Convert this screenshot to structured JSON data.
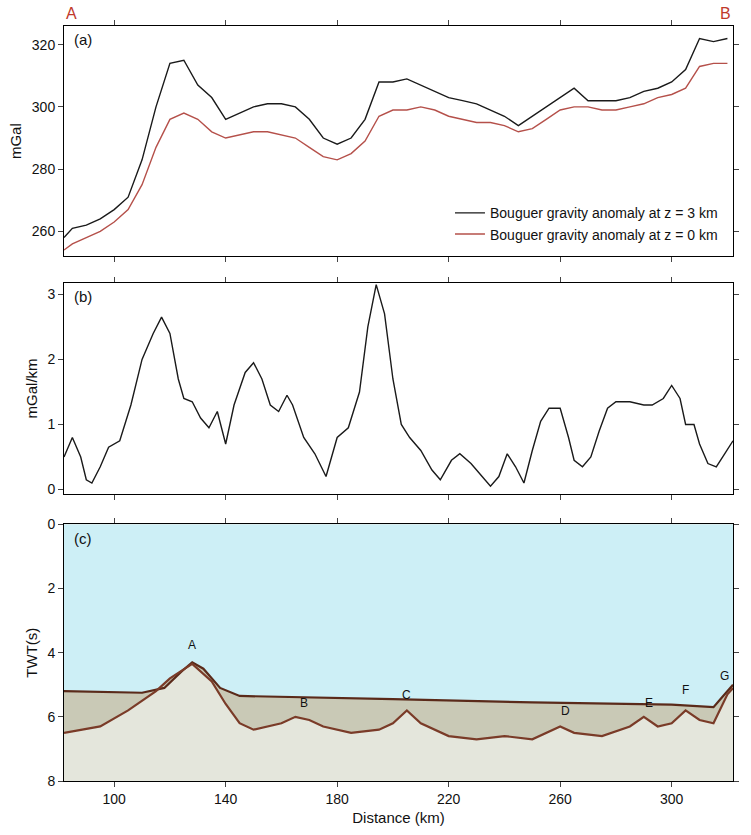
{
  "chart_data": [
    {
      "type": "line",
      "title": "(a)",
      "y_label": "mGal",
      "xlim": [
        82,
        322
      ],
      "xticks": [
        100,
        140,
        180,
        220,
        260,
        300
      ],
      "ylim": [
        252,
        326
      ],
      "yticks": [
        260,
        280,
        300,
        320
      ],
      "tick_labels": "y",
      "grid": false,
      "legend": "lower right",
      "annotations": [
        {
          "text": "A",
          "color": "#c0392b"
        },
        {
          "text": "B",
          "color": "#c0392b"
        }
      ],
      "series": [
        {
          "name": "Bouguer gravity anomaly at z = 0 km",
          "color": "#b5504a",
          "x": [
            82,
            85,
            90,
            95,
            100,
            105,
            110,
            115,
            120,
            125,
            130,
            135,
            140,
            145,
            150,
            155,
            160,
            165,
            170,
            175,
            180,
            185,
            190,
            195,
            200,
            205,
            210,
            215,
            220,
            225,
            230,
            235,
            240,
            245,
            250,
            255,
            260,
            265,
            270,
            275,
            280,
            285,
            290,
            295,
            300,
            305,
            310,
            315,
            320
          ],
          "values": [
            254,
            256,
            258,
            260,
            263,
            267,
            275,
            287,
            296,
            298,
            296,
            292,
            290,
            291,
            292,
            292,
            291,
            290,
            287,
            284,
            283,
            285,
            289,
            297,
            299,
            299,
            300,
            299,
            297,
            296,
            295,
            295,
            294,
            292,
            293,
            296,
            299,
            300,
            300,
            299,
            299,
            300,
            301,
            303,
            304,
            306,
            313,
            314,
            314
          ]
        },
        {
          "name": "Bouguer gravity anomaly at z = 3 km",
          "color": "#1a1a1a",
          "x": [
            82,
            85,
            90,
            95,
            100,
            105,
            110,
            115,
            120,
            125,
            130,
            135,
            140,
            145,
            150,
            155,
            160,
            165,
            170,
            175,
            180,
            185,
            190,
            195,
            200,
            205,
            210,
            215,
            220,
            225,
            230,
            235,
            240,
            245,
            250,
            255,
            260,
            265,
            270,
            275,
            280,
            285,
            290,
            295,
            300,
            305,
            310,
            315,
            320
          ],
          "values": [
            258,
            261,
            262,
            264,
            267,
            271,
            283,
            300,
            314,
            315,
            307,
            303,
            296,
            298,
            300,
            301,
            301,
            300,
            296,
            290,
            288,
            290,
            296,
            308,
            308,
            309,
            307,
            305,
            303,
            302,
            301,
            299,
            297,
            294,
            297,
            300,
            303,
            306,
            302,
            302,
            302,
            303,
            305,
            306,
            308,
            312,
            322,
            321,
            322
          ]
        }
      ]
    },
    {
      "type": "line",
      "title": "(b)",
      "y_label": "mGal/km",
      "xlim": [
        82,
        322
      ],
      "xticks": [
        100,
        140,
        180,
        220,
        260,
        300
      ],
      "ylim": [
        -0.07,
        3.18
      ],
      "yticks": [
        0,
        1,
        2,
        3
      ],
      "tick_labels": "y",
      "grid": false,
      "series": [
        {
          "color": "#1a1a1a",
          "x": [
            82,
            85,
            88,
            90,
            92,
            95,
            98,
            102,
            106,
            110,
            114,
            117,
            120,
            123,
            125,
            128,
            131,
            134,
            137,
            140,
            143,
            147,
            150,
            153,
            156,
            159,
            162,
            164,
            168,
            172,
            176,
            180,
            184,
            188,
            191,
            194,
            197,
            200,
            203,
            206,
            210,
            214,
            217,
            221,
            224,
            228,
            232,
            235,
            238,
            241,
            244,
            247,
            250,
            253,
            256,
            260,
            263,
            265,
            268,
            271,
            274,
            277,
            280,
            285,
            290,
            293,
            297,
            300,
            303,
            305,
            308,
            310,
            313,
            316,
            319,
            322
          ],
          "values": [
            0.5,
            0.8,
            0.5,
            0.15,
            0.1,
            0.35,
            0.65,
            0.75,
            1.3,
            2.0,
            2.4,
            2.65,
            2.4,
            1.7,
            1.4,
            1.35,
            1.1,
            0.95,
            1.2,
            0.7,
            1.3,
            1.8,
            1.95,
            1.7,
            1.3,
            1.2,
            1.45,
            1.3,
            0.8,
            0.55,
            0.2,
            0.8,
            0.95,
            1.5,
            2.5,
            3.15,
            2.7,
            1.7,
            1.0,
            0.8,
            0.6,
            0.3,
            0.15,
            0.45,
            0.55,
            0.4,
            0.2,
            0.05,
            0.2,
            0.55,
            0.35,
            0.1,
            0.6,
            1.05,
            1.25,
            1.25,
            0.8,
            0.45,
            0.35,
            0.5,
            0.9,
            1.25,
            1.35,
            1.35,
            1.3,
            1.3,
            1.4,
            1.6,
            1.4,
            1.0,
            1.0,
            0.7,
            0.4,
            0.35,
            0.55,
            0.75
          ]
        }
      ]
    },
    {
      "type": "profile",
      "title": "(c)",
      "y_label": "TWT(s)",
      "x_label": "Distance (km)",
      "xlim": [
        82,
        322
      ],
      "xticks": [
        100,
        140,
        180,
        220,
        260,
        300
      ],
      "ylim": [
        8,
        0
      ],
      "yticks": [
        0,
        2,
        4,
        6,
        8
      ],
      "tick_labels": true,
      "grid": false,
      "series": [
        {
          "color": "#5a2a1a",
          "x": [
            82,
            110,
            118,
            124,
            128,
            132,
            138,
            145,
            200,
            250,
            300,
            315,
            318,
            322
          ],
          "values": [
            5.2,
            5.25,
            5.1,
            4.6,
            4.3,
            4.5,
            5.1,
            5.35,
            5.45,
            5.55,
            5.62,
            5.7,
            5.4,
            5.0
          ]
        },
        {
          "color": "#7a3b28",
          "x": [
            82,
            95,
            105,
            115,
            120,
            128,
            135,
            140,
            145,
            150,
            160,
            165,
            170,
            175,
            185,
            195,
            200,
            205,
            210,
            220,
            230,
            240,
            250,
            260,
            265,
            275,
            285,
            290,
            295,
            300,
            305,
            310,
            315,
            320,
            322
          ],
          "values": [
            6.5,
            6.3,
            5.8,
            5.2,
            4.8,
            4.35,
            4.9,
            5.6,
            6.2,
            6.4,
            6.2,
            6.0,
            6.1,
            6.3,
            6.5,
            6.4,
            6.2,
            5.8,
            6.2,
            6.6,
            6.7,
            6.6,
            6.7,
            6.3,
            6.5,
            6.6,
            6.3,
            6.0,
            6.3,
            6.2,
            5.8,
            6.1,
            6.2,
            5.3,
            5.1
          ]
        }
      ],
      "annotations": [
        {
          "text": "A",
          "x": 128,
          "y": 4.05
        },
        {
          "text": "B",
          "x": 168,
          "y": 5.85
        },
        {
          "text": "C",
          "x": 205,
          "y": 5.6
        },
        {
          "text": "D",
          "x": 262,
          "y": 6.1
        },
        {
          "text": "E",
          "x": 292,
          "y": 5.85
        },
        {
          "text": "F",
          "x": 305,
          "y": 5.45
        },
        {
          "text": "G",
          "x": 319,
          "y": 5.0
        }
      ]
    }
  ]
}
